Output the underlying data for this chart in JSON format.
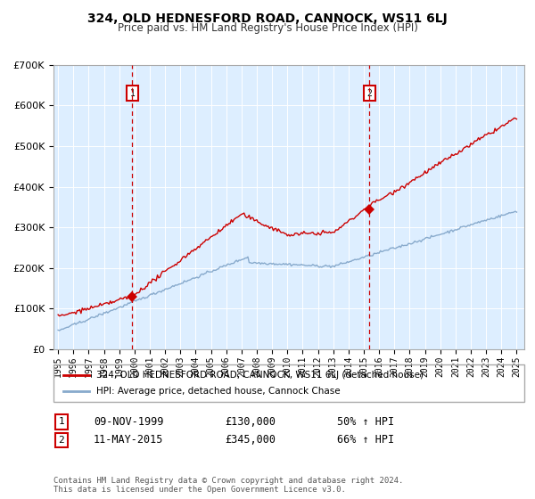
{
  "title": "324, OLD HEDNESFORD ROAD, CANNOCK, WS11 6LJ",
  "subtitle": "Price paid vs. HM Land Registry's House Price Index (HPI)",
  "legend_line1": "324, OLD HEDNESFORD ROAD, CANNOCK, WS11 6LJ (detached house)",
  "legend_line2": "HPI: Average price, detached house, Cannock Chase",
  "sale1_date": "09-NOV-1999",
  "sale1_price": "£130,000",
  "sale1_hpi": "50% ↑ HPI",
  "sale1_year": 1999.86,
  "sale1_value": 130000,
  "sale2_date": "11-MAY-2015",
  "sale2_price": "£345,000",
  "sale2_hpi": "66% ↑ HPI",
  "sale2_year": 2015.36,
  "sale2_value": 345000,
  "footer": "Contains HM Land Registry data © Crown copyright and database right 2024.\nThis data is licensed under the Open Government Licence v3.0.",
  "red_color": "#cc0000",
  "blue_color": "#88aacc",
  "background_color": "#ddeeff",
  "ylim": [
    0,
    700000
  ],
  "xlim_left": 1994.7,
  "xlim_right": 2025.5
}
